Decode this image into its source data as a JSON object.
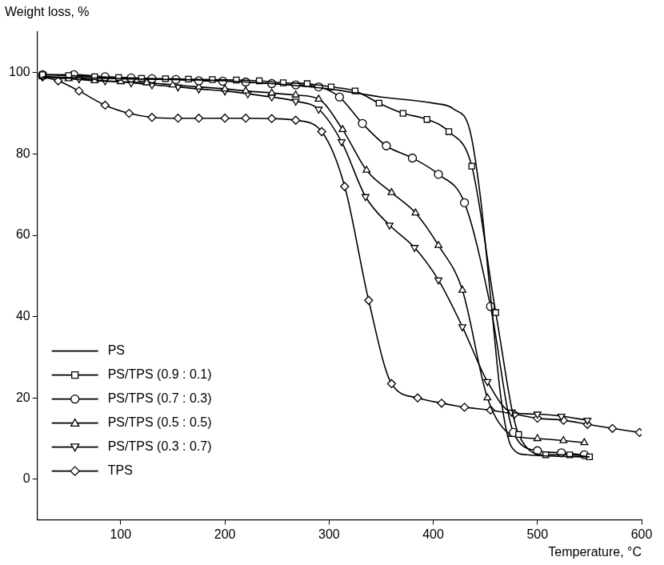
{
  "chart_data": {
    "type": "line",
    "x_label": "Temperature, °C",
    "y_label": "Weight loss, %",
    "xlim": [
      20,
      600
    ],
    "xticks": [
      100,
      200,
      300,
      400,
      500,
      600
    ],
    "ylim": [
      -10,
      110
    ],
    "yticks": [
      0,
      20,
      40,
      60,
      80,
      100
    ],
    "grid": false,
    "legend": "lower left",
    "series": [
      {
        "name": "PS",
        "color": "#000000",
        "marker": "none",
        "line_style": "solid",
        "x": [
          25,
          100,
          200,
          300,
          350,
          400,
          420,
          435,
          445,
          455,
          465,
          475,
          490,
          550
        ],
        "values": [
          99,
          98.5,
          98,
          96,
          94,
          92.5,
          91,
          86,
          70,
          45,
          20,
          8,
          6,
          5.5
        ]
      },
      {
        "name": "PS/TPS (0.9 : 0.1)",
        "color": "#000000",
        "marker": "square",
        "line_style": "solid",
        "x": [
          25,
          50,
          75,
          98,
          120,
          143,
          165,
          188,
          211,
          233,
          256,
          279,
          302,
          325,
          348,
          371,
          394,
          415,
          437,
          460,
          482,
          508,
          531,
          550
        ],
        "values": [
          99.5,
          99.3,
          99,
          98.8,
          98.6,
          98.5,
          98.4,
          98.3,
          98.2,
          98,
          97.5,
          97.3,
          96.5,
          95.5,
          92.5,
          90,
          88.5,
          85.5,
          77,
          41,
          11,
          6,
          6,
          5.5
        ]
      },
      {
        "name": "PS/TPS (0.7 : 0.3)",
        "color": "#000000",
        "marker": "circle",
        "line_style": "solid",
        "x": [
          25,
          55,
          85,
          110,
          130,
          153,
          175,
          198,
          220,
          245,
          268,
          290,
          310,
          332,
          355,
          380,
          405,
          430,
          455,
          477,
          500,
          523,
          545
        ],
        "values": [
          99.5,
          99.5,
          99,
          98.7,
          98.5,
          98.3,
          98,
          97.9,
          97.7,
          97.3,
          97,
          96.5,
          94,
          87.5,
          82,
          79,
          75,
          68,
          42.5,
          11.5,
          7,
          6.5,
          6
        ]
      },
      {
        "name": "PS/TPS (0.5 : 0.5)",
        "color": "#000000",
        "marker": "triangle-up",
        "line_style": "solid",
        "x": [
          25,
          50,
          75,
          100,
          125,
          150,
          175,
          200,
          220,
          245,
          268,
          290,
          313,
          336,
          360,
          383,
          405,
          428,
          452,
          475,
          500,
          525,
          545
        ],
        "values": [
          99,
          98.5,
          98,
          97.8,
          97.5,
          97,
          96.5,
          96,
          95.5,
          95,
          94.5,
          93.5,
          86,
          76,
          70.5,
          65.5,
          57.5,
          46.5,
          20,
          11,
          10,
          9.5,
          9
        ]
      },
      {
        "name": "PS/TPS (0.3 : 0.7)",
        "color": "#000000",
        "marker": "triangle-down",
        "line_style": "solid",
        "x": [
          25,
          60,
          85,
          110,
          130,
          155,
          175,
          200,
          222,
          245,
          268,
          290,
          312,
          335,
          358,
          382,
          405,
          428,
          452,
          475,
          500,
          523,
          548
        ],
        "values": [
          99,
          98.5,
          98,
          97.5,
          97,
          96.5,
          96,
          95.5,
          94.8,
          94,
          93,
          91,
          83,
          69.5,
          62.5,
          57,
          49,
          37.5,
          24,
          16.5,
          16,
          15.5,
          14.5
        ]
      },
      {
        "name": "TPS",
        "color": "#000000",
        "marker": "diamond",
        "line_style": "solid",
        "x": [
          25,
          40,
          60,
          85,
          108,
          130,
          155,
          175,
          200,
          220,
          245,
          268,
          293,
          315,
          338,
          360,
          385,
          408,
          430,
          455,
          478,
          500,
          525,
          548,
          572,
          598
        ],
        "values": [
          99,
          98,
          95.5,
          92,
          90,
          89,
          88.8,
          88.8,
          88.8,
          88.8,
          88.7,
          88.3,
          85.5,
          72,
          44,
          23.5,
          20,
          18.7,
          17.7,
          17,
          16,
          15,
          14.5,
          13.5,
          12.5,
          11.5
        ]
      }
    ]
  }
}
